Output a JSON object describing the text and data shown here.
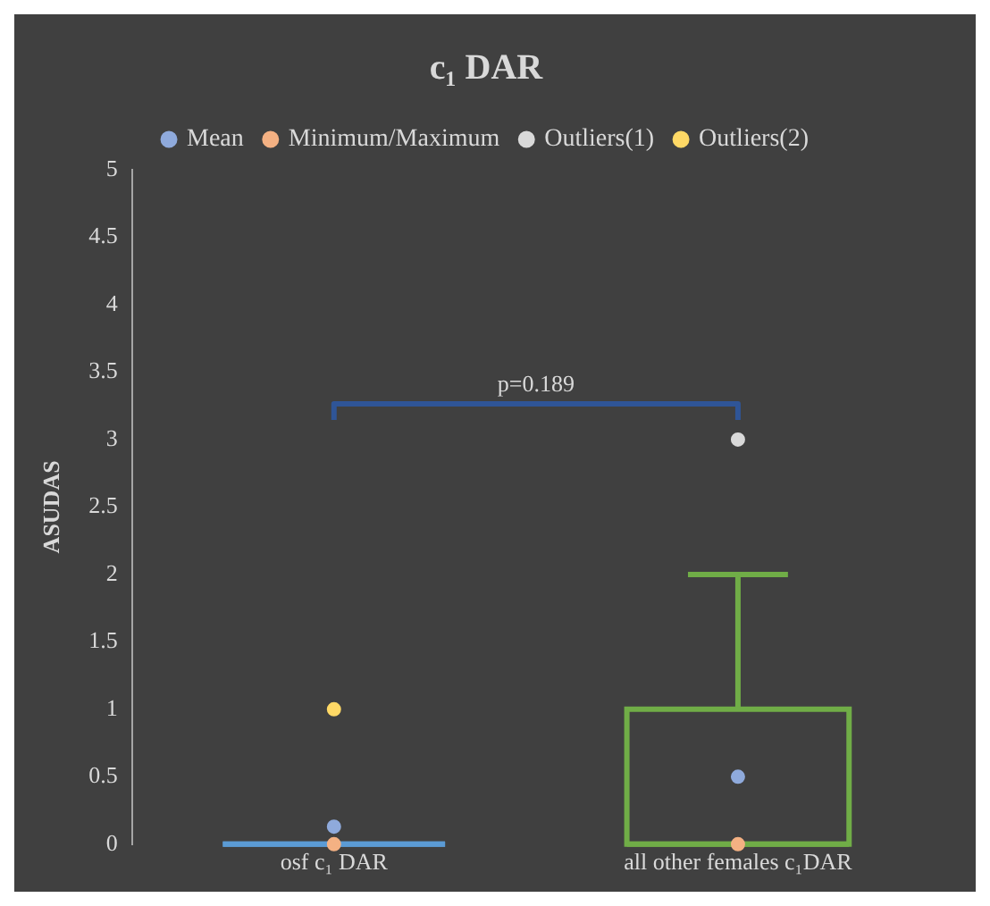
{
  "chart_data": {
    "type": "box",
    "title": "c₁ DAR",
    "ylabel": "ASUDAS",
    "categories": [
      "osf c₁ DAR",
      "all other females c₁DAR"
    ],
    "series": [
      {
        "type": "box",
        "colors": [
          "#5b9bd5",
          "#70ad47"
        ],
        "boxes": [
          {
            "low": 0,
            "q1": 0,
            "median": 0,
            "q3": 0,
            "high": 0
          },
          {
            "low": 0,
            "q1": 0,
            "median": 0,
            "q3": 1,
            "high": 2
          }
        ]
      },
      {
        "type": "scatter",
        "name": "Mean",
        "color": "#8faadc",
        "x": [
          "osf c₁ DAR",
          "all other females c₁DAR"
        ],
        "values": [
          0.13,
          0.5
        ]
      },
      {
        "type": "scatter",
        "name": "Minimum/Maximum",
        "color": "#f4b183",
        "x": [
          "osf c₁ DAR",
          "all other females c₁DAR"
        ],
        "values": [
          0,
          0
        ]
      },
      {
        "type": "scatter",
        "name": "Outliers(1)",
        "color": "#d9d9d9",
        "x": [
          "all other females c₁DAR"
        ],
        "values": [
          3
        ]
      },
      {
        "type": "scatter",
        "name": "Outliers(2)",
        "color": "#ffd966",
        "x": [
          "osf c₁ DAR"
        ],
        "values": [
          1
        ]
      }
    ],
    "ylim": [
      0,
      5
    ],
    "yticks": [
      0,
      0.5,
      1,
      1.5,
      2,
      2.5,
      3,
      3.5,
      4,
      4.5,
      5
    ],
    "grid": false,
    "legend": "top",
    "marker": "circle",
    "annotations": [
      "p=0.189"
    ]
  }
}
